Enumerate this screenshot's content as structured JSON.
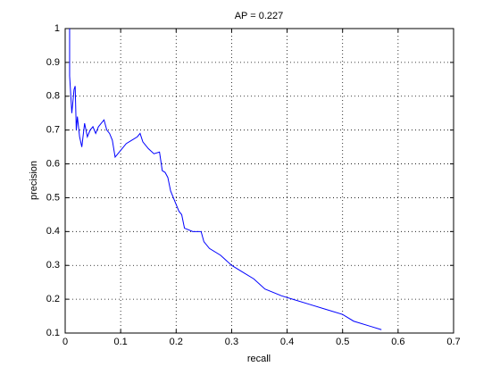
{
  "chart_data": {
    "type": "line",
    "title": "AP = 0.227",
    "x_label": "recall",
    "y_label": "precision",
    "x": [
      0.008,
      0.008,
      0.012,
      0.016,
      0.018,
      0.02,
      0.022,
      0.026,
      0.03,
      0.035,
      0.04,
      0.045,
      0.05,
      0.055,
      0.06,
      0.065,
      0.07,
      0.075,
      0.08,
      0.085,
      0.09,
      0.095,
      0.1,
      0.11,
      0.12,
      0.13,
      0.135,
      0.14,
      0.15,
      0.16,
      0.17,
      0.175,
      0.18,
      0.185,
      0.19,
      0.2,
      0.205,
      0.21,
      0.215,
      0.23,
      0.245,
      0.25,
      0.26,
      0.28,
      0.3,
      0.32,
      0.34,
      0.36,
      0.39,
      0.41,
      0.44,
      0.47,
      0.5,
      0.52,
      0.55,
      0.57
    ],
    "series": [
      {
        "name": "precision",
        "color": "#0000ff",
        "values": [
          1.0,
          0.86,
          0.75,
          0.82,
          0.83,
          0.7,
          0.74,
          0.68,
          0.65,
          0.72,
          0.68,
          0.7,
          0.71,
          0.69,
          0.71,
          0.72,
          0.73,
          0.7,
          0.69,
          0.67,
          0.62,
          0.63,
          0.64,
          0.66,
          0.67,
          0.68,
          0.69,
          0.665,
          0.645,
          0.63,
          0.635,
          0.58,
          0.575,
          0.56,
          0.52,
          0.48,
          0.46,
          0.45,
          0.41,
          0.4,
          0.4,
          0.37,
          0.35,
          0.33,
          0.3,
          0.28,
          0.26,
          0.23,
          0.21,
          0.2,
          0.185,
          0.17,
          0.155,
          0.135,
          0.12,
          0.11
        ]
      }
    ],
    "xlim": [
      0,
      0.7
    ],
    "xticks": [
      0,
      0.1,
      0.2,
      0.3,
      0.4,
      0.5,
      0.6,
      0.7
    ],
    "ylim": [
      0.1,
      1
    ],
    "yticks": [
      0.1,
      0.2,
      0.3,
      0.4,
      0.5,
      0.6,
      0.7,
      0.8,
      0.9,
      1
    ],
    "grid": true
  }
}
